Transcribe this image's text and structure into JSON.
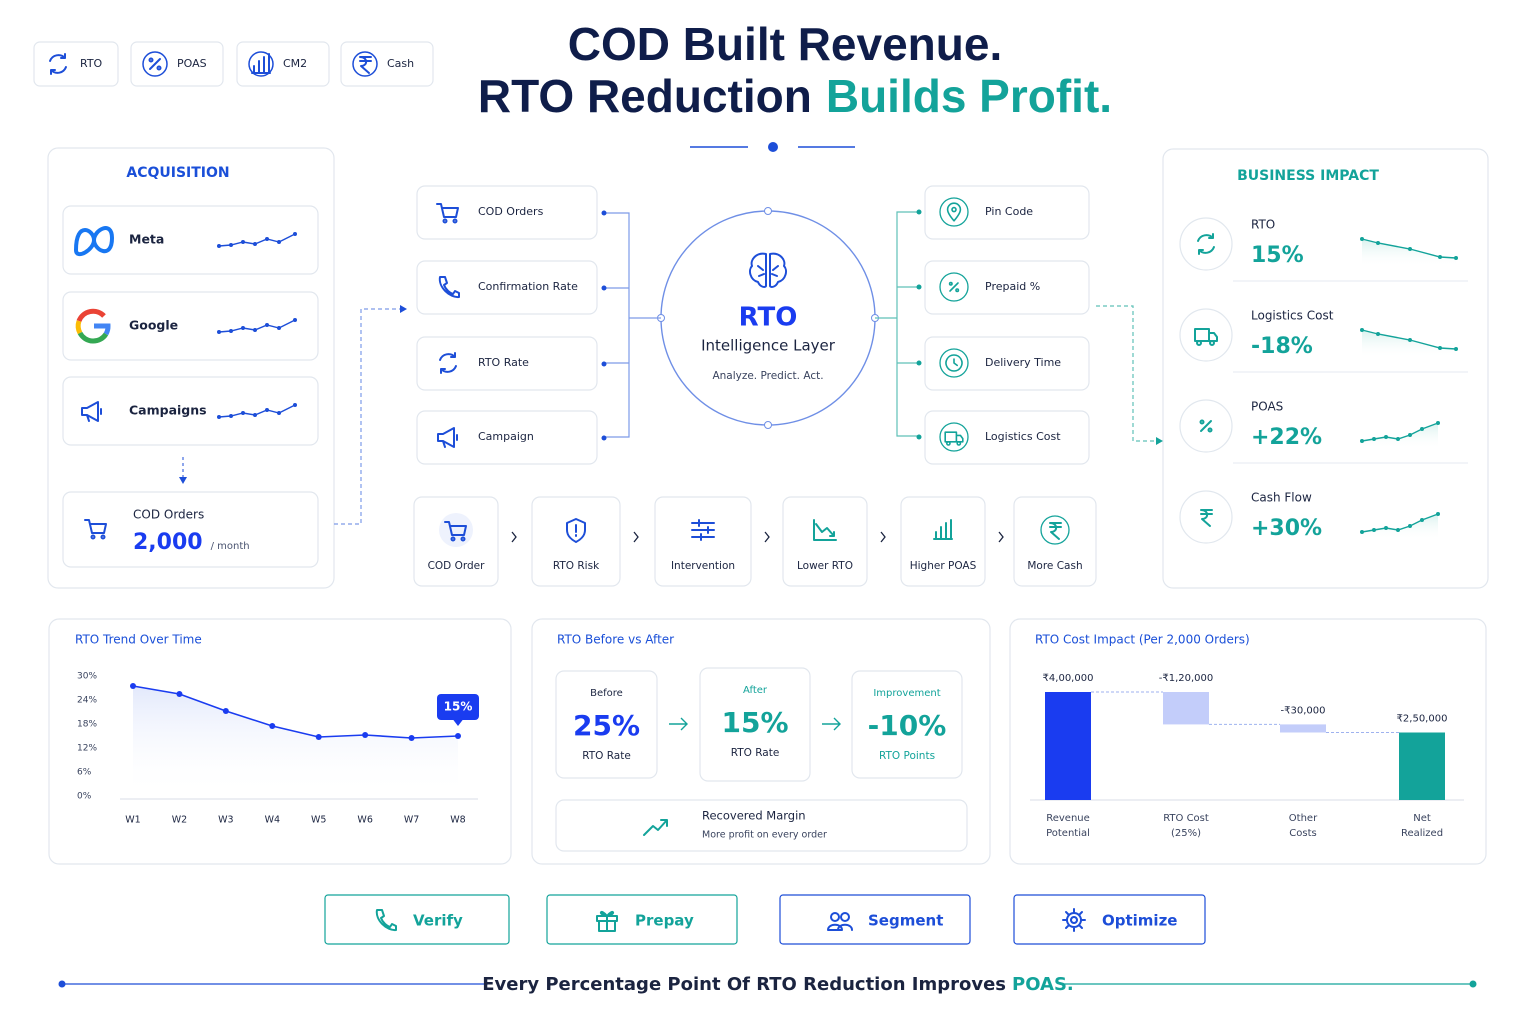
{
  "header": {
    "tabs": [
      "RTO",
      "POAS",
      "CM2",
      "Cash"
    ],
    "title_line1": "COD Built Revenue.",
    "title_line2": "RTO Reduction",
    "title_line2_accent": "Builds Profit."
  },
  "acquisition": {
    "title": "ACQUISITION",
    "channels": [
      "Meta",
      "Google",
      "Campaigns"
    ],
    "cod_orders": {
      "label": "COD Orders",
      "value": "2,000",
      "unit": "/ month"
    }
  },
  "inputs": [
    "COD Orders",
    "Confirmation Rate",
    "RTO Rate",
    "Campaign"
  ],
  "intelligence": {
    "title": "RTO",
    "subtitle": "Intelligence Layer",
    "tagline": "Analyze. Predict. Act."
  },
  "signals": [
    "Pin Code",
    "Prepaid %",
    "Delivery Time",
    "Logistics Cost"
  ],
  "flow": [
    "COD Order",
    "RTO Risk",
    "Intervention",
    "Lower RTO",
    "Higher POAS",
    "More Cash"
  ],
  "business_impact": {
    "title": "BUSINESS IMPACT",
    "metrics": [
      {
        "label": "RTO",
        "value": "15%",
        "trend": "down"
      },
      {
        "label": "Logistics Cost",
        "value": "-18%",
        "trend": "down"
      },
      {
        "label": "POAS",
        "value": "+22%",
        "trend": "up"
      },
      {
        "label": "Cash Flow",
        "value": "+30%",
        "trend": "up"
      }
    ]
  },
  "rto_trend": {
    "type": "line",
    "title": "RTO Trend Over Time",
    "categories": [
      "W1",
      "W2",
      "W3",
      "W4",
      "W5",
      "W6",
      "W7",
      "W8"
    ],
    "values": [
      27.5,
      25.5,
      21.25,
      17.5,
      14.75,
      15.25,
      14.5,
      15
    ],
    "value_labels": [
      null,
      null,
      null,
      null,
      null,
      null,
      null,
      "15%"
    ],
    "ylim": [
      0,
      30
    ],
    "yticks": [
      {
        "value": 0,
        "label": "0%"
      },
      {
        "value": 6,
        "label": "6%"
      },
      {
        "value": 12,
        "label": "12%"
      },
      {
        "value": 18,
        "label": "18%"
      },
      {
        "value": 24,
        "label": "24%"
      },
      {
        "value": 30,
        "label": "30%"
      }
    ],
    "color": "#1a3cf0"
  },
  "before_after": {
    "title": "RTO Before vs After",
    "cards": [
      {
        "heading": "Before",
        "value": "25%",
        "caption": "RTO Rate"
      },
      {
        "heading": "After",
        "value": "15%",
        "caption": "RTO Rate"
      },
      {
        "heading": "Improvement",
        "value": "-10%",
        "caption": "RTO Points"
      }
    ],
    "recovered": {
      "title": "Recovered Margin",
      "subtitle": "More profit on every order"
    }
  },
  "cost_impact": {
    "type": "waterfall",
    "title": "RTO Cost Impact (Per 2,000 Orders)",
    "categories": [
      [
        "Revenue",
        "Potential"
      ],
      [
        "RTO Cost",
        "(25%)"
      ],
      [
        "Other",
        "Costs"
      ],
      [
        "Net",
        "Realized"
      ]
    ],
    "values": [
      400000,
      -120000,
      -30000,
      250000
    ],
    "value_labels": [
      "₹4,00,000",
      "-₹1,20,000",
      "-₹30,000",
      "₹2,50,000"
    ],
    "totals": [
      true,
      false,
      false,
      true
    ],
    "colors": [
      "#1a3cf0",
      "#c3cdfa",
      "#c3cdfa",
      "#13a39a"
    ]
  },
  "actions": [
    "Verify",
    "Prepay",
    "Segment",
    "Optimize"
  ],
  "footer": {
    "text": "Every Percentage Point Of RTO Reduction Improves",
    "accent": "POAS."
  }
}
